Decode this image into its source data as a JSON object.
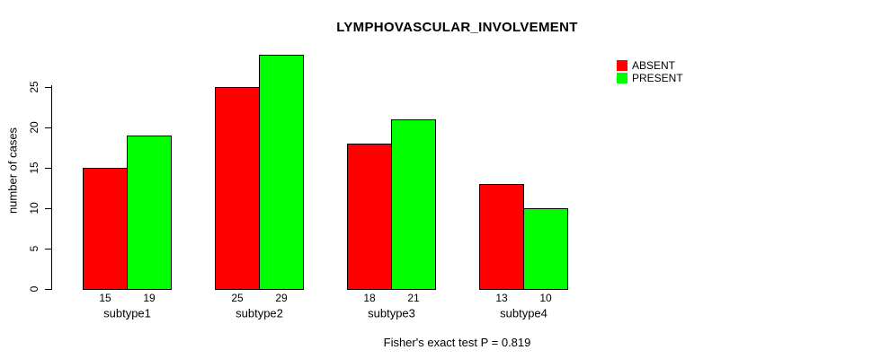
{
  "chart_data": {
    "type": "bar",
    "title": "LYMPHOVASCULAR_INVOLVEMENT",
    "ylabel": "number of cases",
    "xlabel": "",
    "categories": [
      "subtype1",
      "subtype2",
      "subtype3",
      "subtype4"
    ],
    "series": [
      {
        "name": "ABSENT",
        "color": "#ff0000",
        "values": [
          15,
          25,
          18,
          13
        ]
      },
      {
        "name": "PRESENT",
        "color": "#00ff00",
        "values": [
          19,
          29,
          21,
          10
        ]
      }
    ],
    "yticks": [
      0,
      5,
      10,
      15,
      20,
      25
    ],
    "ylim": [
      0,
      29
    ],
    "grid": false,
    "bar_value_labels": true,
    "legend_position": "top-right",
    "caption": "Fisher's exact test P = 0.819"
  },
  "colors": {
    "absent": "#ff0000",
    "present": "#00ff00",
    "axis": "#000000",
    "background": "#ffffff"
  }
}
